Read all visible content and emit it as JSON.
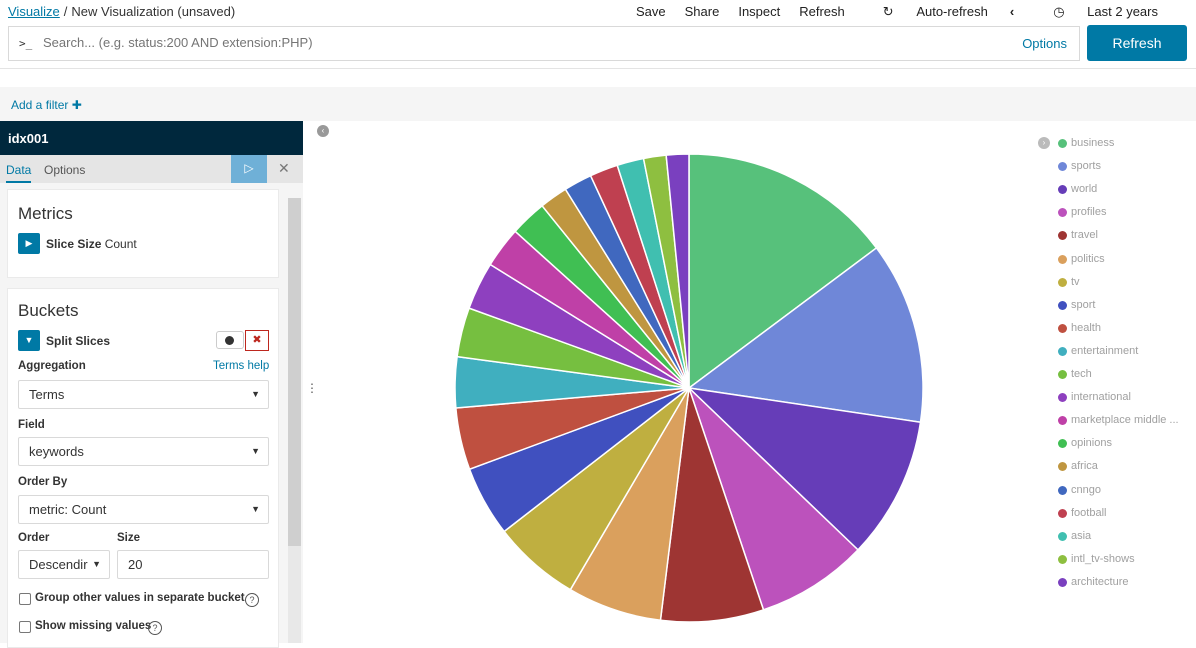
{
  "breadcrumbs": {
    "root": "Visualize",
    "separator": "/",
    "current": "New Visualization (unsaved)"
  },
  "topnav": {
    "save": "Save",
    "share": "Share",
    "inspect": "Inspect",
    "refresh": "Refresh",
    "auto_refresh": "Auto-refresh",
    "time_range": "Last 2 years"
  },
  "query": {
    "prompt": ">_",
    "placeholder": "Search... (e.g. status:200 AND extension:PHP)",
    "options": "Options",
    "refresh_button": "Refresh"
  },
  "filters": {
    "add_filter": "Add a filter ✚"
  },
  "sidebar": {
    "index": "idx001",
    "tabs": [
      "Data",
      "Options"
    ],
    "metrics": {
      "title": "Metrics",
      "agg_label": "Slice Size",
      "agg_value": "Count"
    },
    "buckets": {
      "title": "Buckets",
      "split_label": "Split Slices",
      "aggregation_label": "Aggregation",
      "terms_help": "Terms help",
      "aggregation_value": "Terms",
      "field_label": "Field",
      "field_value": "keywords",
      "order_by_label": "Order By",
      "order_by_value": "metric: Count",
      "order_label": "Order",
      "order_value": "Descendir",
      "size_label": "Size",
      "size_value": "20",
      "group_other": "Group other values in separate bucket",
      "show_missing": "Show missing values"
    }
  },
  "chart_data": {
    "type": "pie",
    "categories": [
      "business",
      "sports",
      "world",
      "profiles",
      "travel",
      "politics",
      "tv",
      "sport",
      "health",
      "entertainment",
      "tech",
      "international",
      "marketplace middle ...",
      "opinions",
      "africa",
      "cnngo",
      "football",
      "asia",
      "intl_tv-shows",
      "architecture"
    ],
    "values": [
      15.2,
      12.9,
      10.1,
      7.9,
      7.3,
      6.7,
      6.2,
      5.0,
      4.4,
      3.6,
      3.5,
      3.4,
      2.9,
      2.6,
      2.0,
      2.0,
      2.0,
      1.9,
      1.6,
      1.6
    ],
    "colors": [
      "#57c17b",
      "#6f87d8",
      "#663db8",
      "#bc52bc",
      "#9e3533",
      "#daa05d",
      "#bfaf40",
      "#4050bf",
      "#bf5040",
      "#40afbf",
      "#76bf40",
      "#8e40bf",
      "#bf40a7",
      "#40bf53",
      "#bf9640",
      "#4068bf",
      "#bf4050",
      "#40bfb0",
      "#8ebf40",
      "#7a40bf"
    ]
  }
}
